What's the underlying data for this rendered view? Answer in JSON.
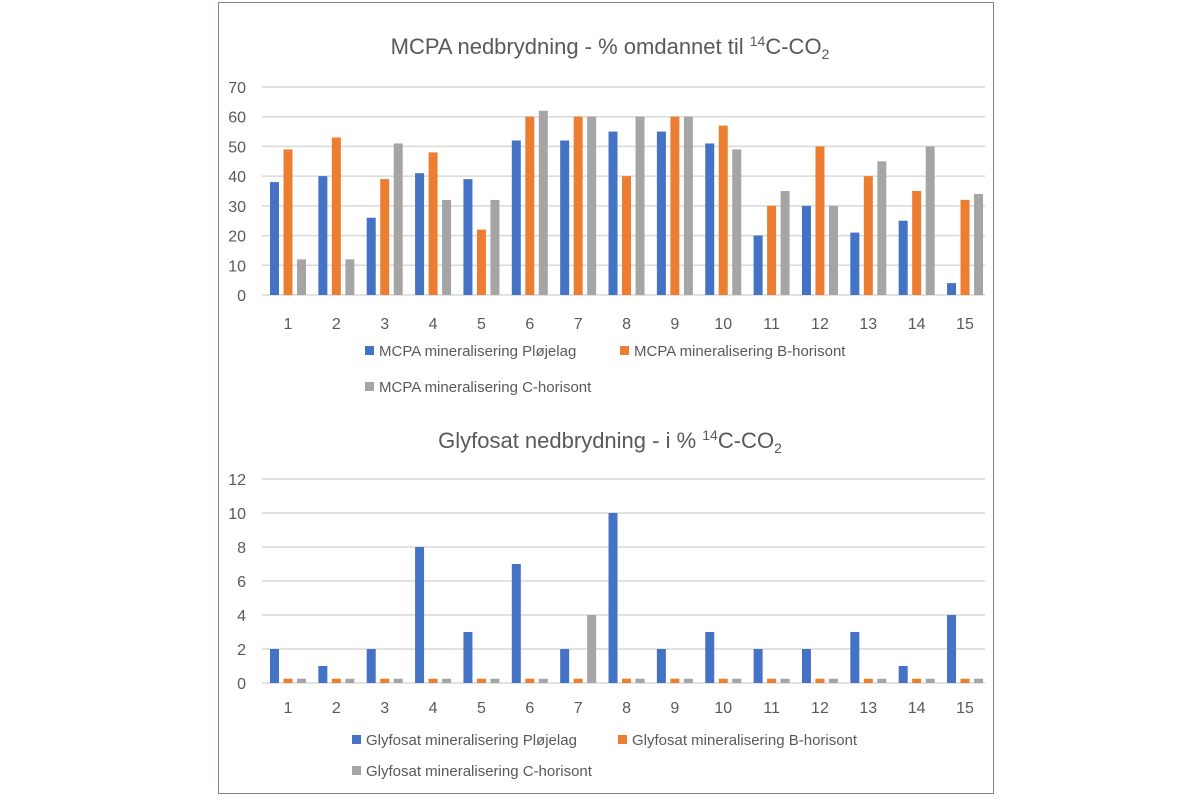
{
  "chart_data": [
    {
      "type": "bar",
      "title": "MCPA nedbrydning - % omdannet til ¹⁴C-CO₂",
      "title_main": "MCPA nedbrydning - % omdannet til ",
      "title_sup": "14",
      "title_mid": "C-CO",
      "title_sub": "2",
      "categories": [
        "1",
        "2",
        "3",
        "4",
        "5",
        "6",
        "7",
        "8",
        "9",
        "10",
        "11",
        "12",
        "13",
        "14",
        "15"
      ],
      "ylim": [
        0,
        70
      ],
      "yticks": [
        0,
        10,
        20,
        30,
        40,
        50,
        60,
        70
      ],
      "grid": true,
      "legend": "bottom",
      "series": [
        {
          "name": "MCPA mineralisering Pløjelag",
          "color": "#4472c4",
          "values": [
            38,
            40,
            26,
            41,
            39,
            52,
            52,
            55,
            55,
            51,
            20,
            30,
            21,
            25,
            4
          ]
        },
        {
          "name": "MCPA mineralisering B-horisont",
          "color": "#ed7d31",
          "values": [
            49,
            53,
            39,
            48,
            22,
            60,
            60,
            40,
            60,
            57,
            30,
            50,
            40,
            35,
            32
          ]
        },
        {
          "name": "MCPA mineralisering C-horisont",
          "color": "#a5a5a5",
          "values": [
            12,
            12,
            51,
            32,
            32,
            62,
            60,
            60,
            60,
            49,
            35,
            30,
            45,
            50,
            34
          ]
        }
      ]
    },
    {
      "type": "bar",
      "title": "Glyfosat nedbrydning - i % ¹⁴C-CO₂",
      "title_main": "Glyfosat nedbrydning - i % ",
      "title_sup": "14",
      "title_mid": "C-CO",
      "title_sub": "2",
      "categories": [
        "1",
        "2",
        "3",
        "4",
        "5",
        "6",
        "7",
        "8",
        "9",
        "10",
        "11",
        "12",
        "13",
        "14",
        "15"
      ],
      "ylim": [
        0,
        12
      ],
      "yticks": [
        0,
        2,
        4,
        6,
        8,
        10,
        12
      ],
      "grid": true,
      "legend": "bottom",
      "series": [
        {
          "name": "Glyfosat mineralisering Pløjelag",
          "color": "#4472c4",
          "values": [
            2,
            1,
            2,
            8,
            3,
            7,
            2,
            10,
            2,
            3,
            2,
            2,
            3,
            1,
            4
          ]
        },
        {
          "name": "Glyfosat mineralisering B-horisont",
          "color": "#ed7d31",
          "values": [
            0.25,
            0.25,
            0.25,
            0.25,
            0.25,
            0.25,
            0.25,
            0.25,
            0.25,
            0.25,
            0.25,
            0.25,
            0.25,
            0.25,
            0.25
          ]
        },
        {
          "name": "Glyfosat mineralisering C-horisont",
          "color": "#a5a5a5",
          "values": [
            0.25,
            0.25,
            0.25,
            0.25,
            0.25,
            0.25,
            4,
            0.25,
            0.25,
            0.25,
            0.25,
            0.25,
            0.25,
            0.25,
            0.25
          ]
        }
      ]
    }
  ]
}
